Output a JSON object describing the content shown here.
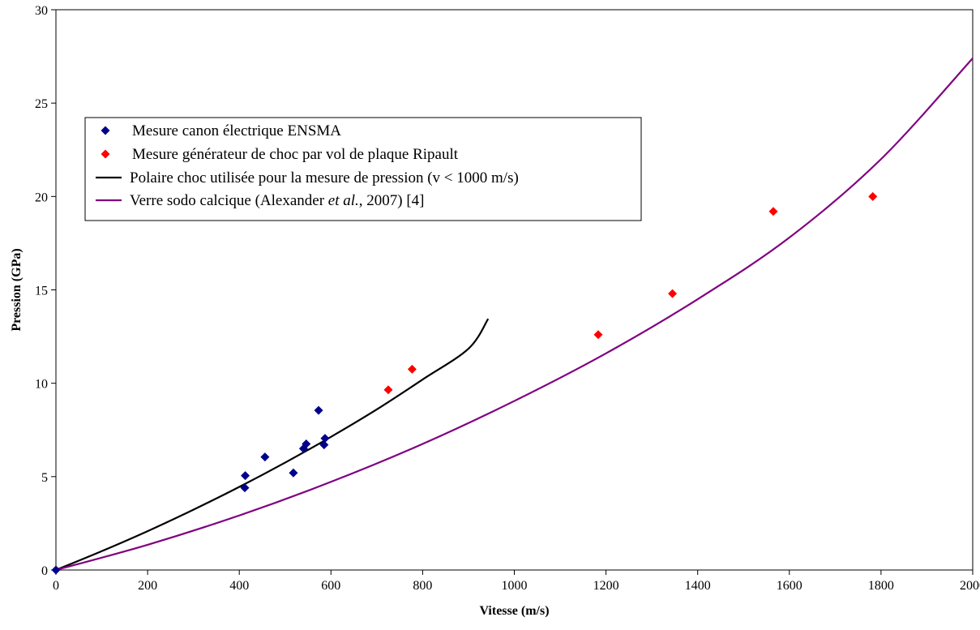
{
  "chart_data": {
    "type": "scatter",
    "title": "",
    "xlabel": "Vitesse (m/s)",
    "ylabel": "Pression (GPa)",
    "xlim": [
      0,
      2000
    ],
    "ylim": [
      0,
      30
    ],
    "x_ticks": [
      0,
      200,
      400,
      600,
      800,
      1000,
      1200,
      1400,
      1600,
      1800,
      2000
    ],
    "y_ticks": [
      0,
      5,
      10,
      15,
      20,
      25,
      30
    ],
    "grid": false,
    "legend_position": "top-left",
    "series": [
      {
        "name": "Mesure canon électrique ENSMA",
        "kind": "points",
        "marker": "diamond",
        "color": "#00008B",
        "points": [
          [
            0,
            0
          ],
          [
            412,
            4.4
          ],
          [
            413,
            5.05
          ],
          [
            456,
            6.05
          ],
          [
            518,
            5.2
          ],
          [
            540,
            6.5
          ],
          [
            546,
            6.75
          ],
          [
            573,
            8.55
          ],
          [
            585,
            6.7
          ],
          [
            587,
            7.05
          ]
        ]
      },
      {
        "name": "Mesure générateur de choc par vol de plaque Ripault",
        "kind": "points",
        "marker": "diamond",
        "color": "#FF0000",
        "points": [
          [
            725,
            9.65
          ],
          [
            777,
            10.75
          ],
          [
            1183,
            12.6
          ],
          [
            1345,
            14.8
          ],
          [
            1565,
            19.2
          ],
          [
            1782,
            20.0
          ]
        ]
      },
      {
        "name": "Polaire choc utilisée pour la mesure de pression (v < 1000 m/s)",
        "kind": "line",
        "color": "#000000",
        "points": [
          [
            0,
            0
          ],
          [
            100,
            1.01
          ],
          [
            200,
            2.08
          ],
          [
            300,
            3.23
          ],
          [
            400,
            4.45
          ],
          [
            500,
            5.75
          ],
          [
            600,
            7.13
          ],
          [
            700,
            8.6
          ],
          [
            800,
            10.2
          ],
          [
            900,
            11.85
          ],
          [
            943,
            13.45
          ]
        ]
      },
      {
        "name": "Verre sodo calcique (Alexander et al., 2007) [4]",
        "name_parts": [
          "Verre sodo calcique (Alexander ",
          "et al.",
          ", 2007) [4]"
        ],
        "kind": "line",
        "color": "#800080",
        "points": [
          [
            0,
            0
          ],
          [
            200,
            1.35
          ],
          [
            400,
            2.92
          ],
          [
            600,
            4.72
          ],
          [
            800,
            6.75
          ],
          [
            1000,
            9.05
          ],
          [
            1200,
            11.6
          ],
          [
            1400,
            14.5
          ],
          [
            1600,
            17.8
          ],
          [
            1800,
            22.0
          ],
          [
            2000,
            27.4
          ]
        ]
      }
    ]
  }
}
